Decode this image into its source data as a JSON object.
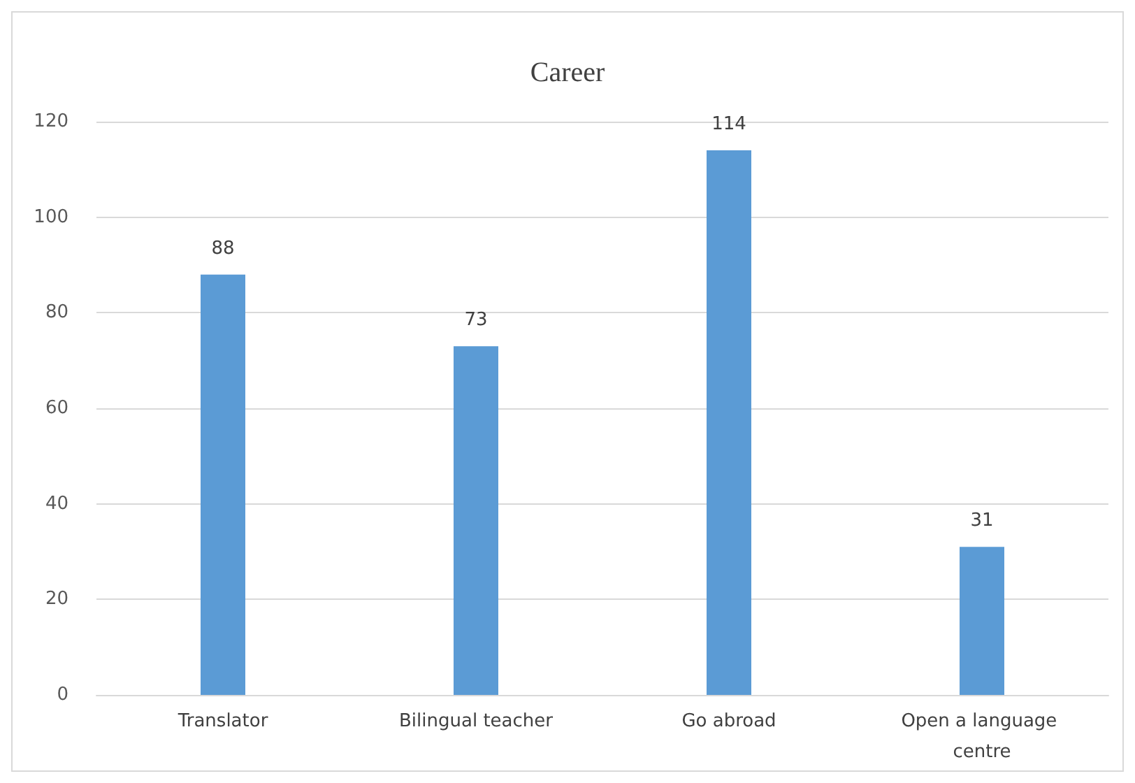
{
  "chart_data": {
    "type": "bar",
    "title": "Career",
    "categories": [
      "Translator",
      "Bilingual teacher",
      "Go abroad",
      "Open a language centre"
    ],
    "values": [
      88,
      73,
      114,
      31
    ],
    "color": "#5b9bd5",
    "ylim": [
      0,
      120
    ],
    "yticks": [
      0,
      20,
      40,
      60,
      80,
      100,
      120
    ],
    "grid": "y",
    "data_labels": true
  }
}
